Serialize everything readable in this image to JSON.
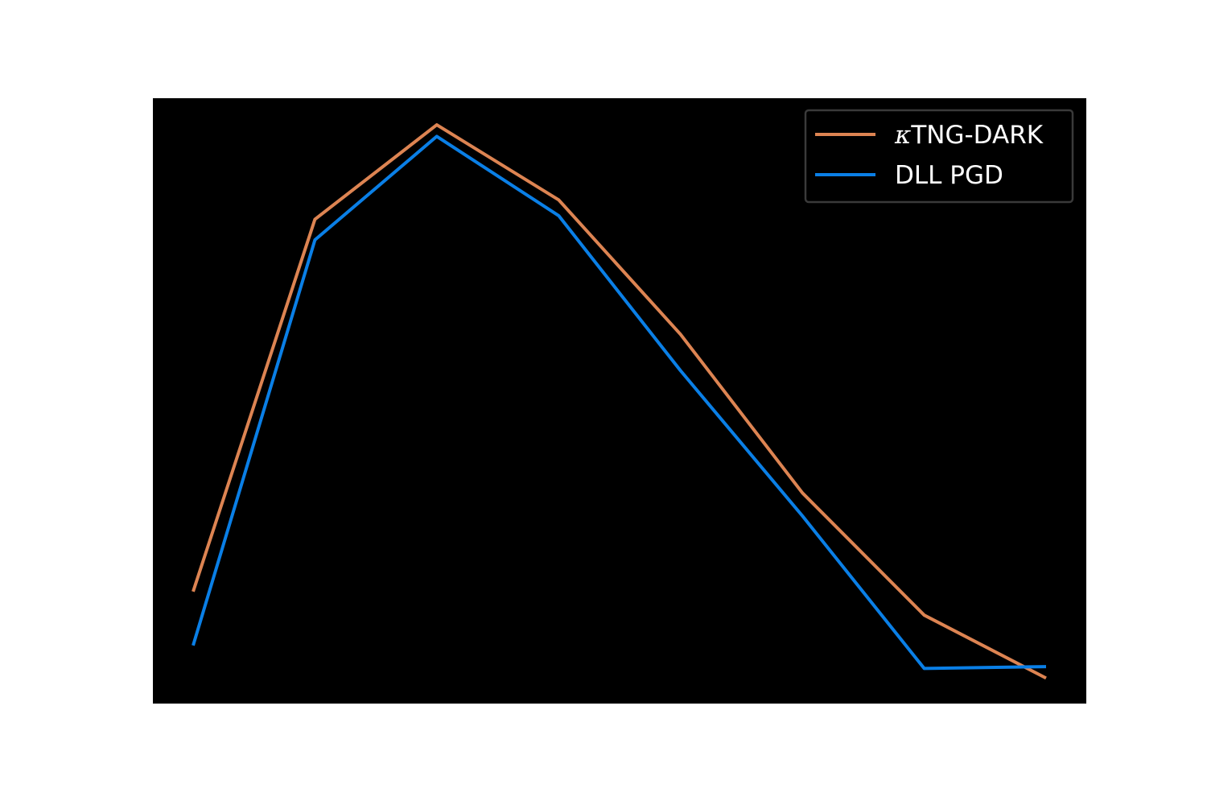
{
  "chart_data": {
    "type": "line",
    "title": "",
    "xlabel": "",
    "ylabel": "",
    "x": [
      0,
      1,
      2,
      3,
      4,
      5,
      6,
      7
    ],
    "xlim": [
      -0.33,
      7.33
    ],
    "ylim": [
      0,
      1
    ],
    "grid": false,
    "background": "#000000",
    "legend_position": "top-right",
    "series": [
      {
        "name": "κTNG-DARK",
        "name_prefix": "κ",
        "name_rest": "TNG-DARK",
        "color": "#DD8452",
        "values": [
          0.185,
          0.8,
          0.956,
          0.832,
          0.61,
          0.348,
          0.146,
          0.042
        ]
      },
      {
        "name": "DLL PGD",
        "color": "#0A7FE6",
        "values": [
          0.096,
          0.766,
          0.937,
          0.806,
          0.55,
          0.31,
          0.058,
          0.061
        ]
      }
    ]
  }
}
